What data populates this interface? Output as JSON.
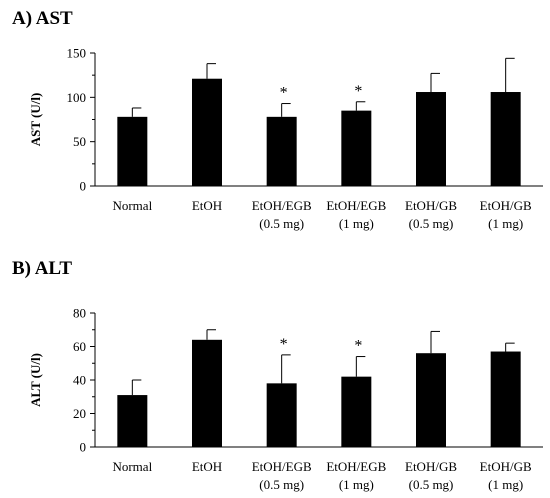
{
  "chart_data": [
    {
      "type": "bar",
      "title": "A) AST",
      "ylabel": "AST (U/l)",
      "xlabel": "",
      "ylim": [
        0,
        150
      ],
      "yticks": [
        0,
        50,
        100,
        150
      ],
      "categories": [
        [
          "Normal"
        ],
        [
          "EtOH"
        ],
        [
          "EtOH/EGB",
          "(0.5 mg)"
        ],
        [
          "EtOH/EGB",
          "(1 mg)"
        ],
        [
          "EtOH/GB",
          "(0.5 mg)"
        ],
        [
          "EtOH/GB",
          "(1 mg)"
        ]
      ],
      "values": [
        78,
        121,
        78,
        85,
        106,
        106
      ],
      "errors": [
        10,
        17,
        15,
        10,
        21,
        38
      ],
      "significance": [
        "",
        "",
        "*",
        "*",
        "",
        ""
      ],
      "bar_color": "#000000",
      "grid": false,
      "legend": false
    },
    {
      "type": "bar",
      "title": "B) ALT",
      "ylabel": "ALT (U/l)",
      "xlabel": "",
      "ylim": [
        0,
        80
      ],
      "yticks": [
        0,
        20,
        40,
        60,
        80
      ],
      "categories": [
        [
          "Normal"
        ],
        [
          "EtOH"
        ],
        [
          "EtOH/EGB",
          "(0.5 mg)"
        ],
        [
          "EtOH/EGB",
          "(1 mg)"
        ],
        [
          "EtOH/GB",
          "(0.5 mg)"
        ],
        [
          "EtOH/GB",
          "(1 mg)"
        ]
      ],
      "values": [
        31,
        64,
        38,
        42,
        56,
        57
      ],
      "errors": [
        9,
        6,
        17,
        12,
        13,
        5
      ],
      "significance": [
        "",
        "",
        "*",
        "*",
        "",
        ""
      ],
      "bar_color": "#000000",
      "grid": false,
      "legend": false
    }
  ]
}
